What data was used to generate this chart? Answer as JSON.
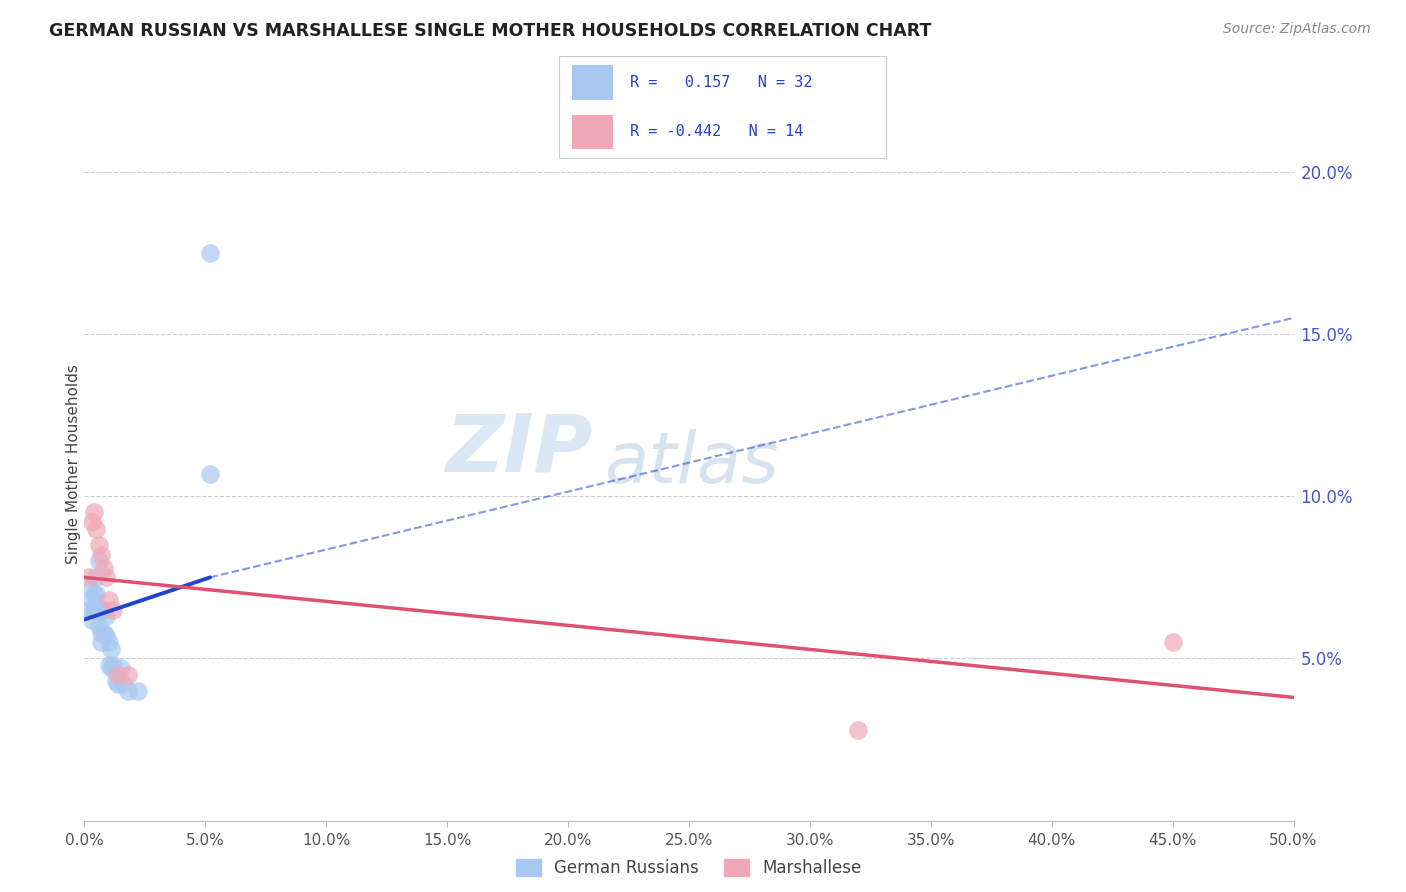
{
  "title": "GERMAN RUSSIAN VS MARSHALLESE SINGLE MOTHER HOUSEHOLDS CORRELATION CHART",
  "source": "Source: ZipAtlas.com",
  "ylabel": "Single Mother Households",
  "ytick_labels": [
    "5.0%",
    "10.0%",
    "15.0%",
    "20.0%"
  ],
  "ytick_values": [
    0.05,
    0.1,
    0.15,
    0.2
  ],
  "xlim": [
    0.0,
    0.5
  ],
  "ylim": [
    0.0,
    0.22
  ],
  "legend_r1": "R =   0.157   N = 32",
  "legend_r2": "R = -0.442   N = 14",
  "german_color": "#a8c8f0",
  "marshallese_color": "#f0a8b8",
  "german_line_color": "#2244cc",
  "marshallese_line_color": "#e05070",
  "watermark_zip": "ZIP",
  "watermark_atlas": "atlas",
  "german_russians_x": [
    0.002,
    0.002,
    0.003,
    0.003,
    0.004,
    0.004,
    0.005,
    0.005,
    0.005,
    0.006,
    0.006,
    0.006,
    0.007,
    0.007,
    0.007,
    0.008,
    0.008,
    0.009,
    0.009,
    0.01,
    0.01,
    0.011,
    0.011,
    0.012,
    0.013,
    0.014,
    0.015,
    0.016,
    0.018,
    0.022,
    0.052,
    0.052
  ],
  "german_russians_y": [
    0.065,
    0.072,
    0.068,
    0.062,
    0.07,
    0.065,
    0.075,
    0.07,
    0.065,
    0.08,
    0.065,
    0.06,
    0.065,
    0.058,
    0.055,
    0.065,
    0.058,
    0.063,
    0.057,
    0.055,
    0.048,
    0.053,
    0.047,
    0.048,
    0.043,
    0.042,
    0.047,
    0.042,
    0.04,
    0.04,
    0.107,
    0.175
  ],
  "marshallese_x": [
    0.002,
    0.003,
    0.004,
    0.005,
    0.006,
    0.007,
    0.008,
    0.009,
    0.01,
    0.012,
    0.014,
    0.018,
    0.32,
    0.45
  ],
  "marshallese_y": [
    0.075,
    0.092,
    0.095,
    0.09,
    0.085,
    0.082,
    0.078,
    0.075,
    0.068,
    0.065,
    0.045,
    0.045,
    0.028,
    0.055
  ],
  "gr_line_x0": 0.0,
  "gr_line_y0": 0.062,
  "gr_line_x1": 0.052,
  "gr_line_y1": 0.075,
  "gr_line_ext_x1": 0.5,
  "gr_line_ext_y1": 0.155,
  "ma_line_x0": 0.0,
  "ma_line_y0": 0.075,
  "ma_line_x1": 0.5,
  "ma_line_y1": 0.038
}
